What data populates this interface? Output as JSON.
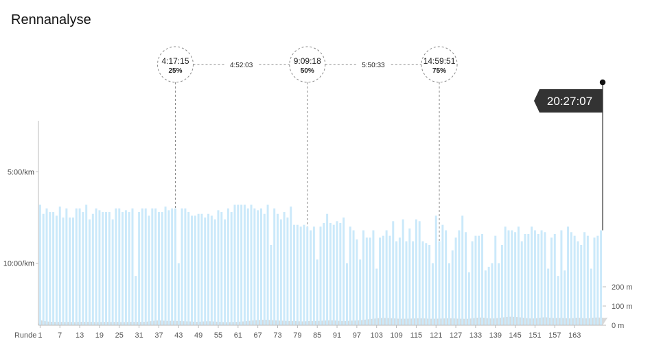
{
  "title": "Rennanalyse",
  "chart_data": {
    "type": "bar",
    "x_label_prefix": "Runde",
    "x_ticks": [
      "1",
      "7",
      "13",
      "19",
      "25",
      "31",
      "37",
      "43",
      "49",
      "55",
      "61",
      "67",
      "73",
      "79",
      "85",
      "91",
      "97",
      "103",
      "109",
      "115",
      "121",
      "127",
      "133",
      "139",
      "145",
      "151",
      "157",
      "163"
    ],
    "y_left_ticks": [
      "5:00/km",
      "10:00/km"
    ],
    "y_right_ticks": [
      "200 m",
      "100 m",
      "0 m"
    ],
    "lap_pace_min_per_km": [
      6.8,
      7.3,
      7.0,
      7.2,
      7.2,
      7.4,
      6.9,
      7.5,
      7.0,
      7.5,
      7.5,
      7.0,
      7.0,
      7.2,
      6.8,
      7.6,
      7.3,
      7.0,
      7.1,
      7.2,
      7.2,
      7.2,
      7.6,
      7.0,
      7.0,
      7.2,
      7.1,
      7.2,
      7.0,
      10.7,
      7.2,
      7.0,
      7.0,
      7.4,
      7.0,
      7.0,
      7.2,
      7.2,
      6.9,
      7.1,
      7.0,
      7.0,
      10.0,
      7.0,
      7.0,
      7.2,
      7.4,
      7.4,
      7.3,
      7.3,
      7.5,
      7.3,
      7.4,
      7.6,
      7.1,
      7.2,
      7.6,
      7.0,
      7.2,
      6.8,
      6.8,
      6.8,
      6.8,
      7.0,
      6.8,
      7.0,
      7.1,
      7.0,
      7.3,
      6.8,
      9.0,
      7.0,
      7.3,
      7.6,
      7.2,
      7.5,
      6.9,
      7.9,
      7.9,
      8.0,
      7.9,
      8.0,
      8.2,
      8.0,
      9.8,
      8.0,
      7.8,
      7.3,
      7.8,
      7.9,
      7.7,
      7.8,
      7.5,
      10.0,
      8.0,
      8.2,
      8.7,
      9.8,
      8.2,
      8.6,
      8.6,
      8.2,
      10.3,
      8.6,
      8.5,
      8.2,
      8.5,
      7.7,
      8.8,
      8.6,
      7.6,
      8.8,
      8.1,
      8.8,
      7.6,
      7.7,
      8.8,
      8.9,
      9.0,
      10.0,
      7.4,
      8.8,
      7.9,
      8.2,
      10.0,
      9.3,
      8.6,
      8.2,
      7.4,
      8.3,
      10.5,
      8.8,
      8.5,
      8.5,
      8.4,
      10.4,
      10.2,
      10.0,
      8.5,
      10.0,
      9.0,
      8.0,
      8.2,
      8.2,
      8.3,
      8.0,
      8.8,
      8.4,
      8.4,
      8.0,
      8.2,
      8.4,
      8.2,
      8.3,
      10.3,
      8.6,
      8.4,
      10.7,
      8.2,
      10.4,
      8.0,
      8.3,
      8.5,
      8.8,
      9.0,
      8.3,
      8.5,
      10.3,
      8.6,
      8.5,
      8.2
    ],
    "y_lim_pace": [
      2.2,
      13.4
    ],
    "elevation_m": [
      28,
      22,
      20,
      18,
      18,
      17,
      18,
      17,
      17,
      18,
      16,
      17,
      18,
      18,
      18,
      17,
      18,
      16,
      17,
      17,
      18,
      17,
      17,
      18,
      17,
      16,
      17,
      17,
      18,
      17,
      18,
      17,
      18,
      20,
      22,
      24,
      25,
      24,
      23,
      22,
      23,
      22,
      22,
      22,
      20,
      20,
      19,
      18,
      18,
      19,
      20,
      21,
      20,
      19,
      18,
      17,
      16,
      16,
      17,
      17,
      18,
      19,
      20,
      22,
      24,
      26,
      27,
      28,
      28,
      28,
      27,
      26,
      24,
      24,
      23,
      22,
      22,
      22,
      21,
      20,
      20,
      21,
      22,
      22,
      22,
      23,
      24,
      25,
      26,
      25,
      24,
      22,
      22,
      22,
      24,
      24,
      25,
      26,
      28,
      30,
      32,
      34,
      36,
      38,
      38,
      38,
      37,
      36,
      35,
      34,
      34,
      34,
      35,
      35,
      36,
      36,
      36,
      35,
      34,
      34,
      34,
      35,
      35,
      36,
      36,
      36,
      35,
      34,
      34,
      33,
      34,
      36,
      38,
      40,
      40,
      38,
      36,
      35,
      36,
      38,
      40,
      42,
      44,
      44,
      43,
      42,
      40,
      38,
      36,
      35,
      36,
      38,
      40,
      42,
      40,
      38,
      38,
      38,
      38,
      38,
      36,
      36,
      38,
      40,
      38,
      36,
      36,
      38,
      40,
      40,
      40,
      38,
      40
    ],
    "y_lim_elev": [
      0,
      240
    ],
    "splits": [
      {
        "time": "4:17:15",
        "pct": "25%",
        "lap": 42
      },
      {
        "time": "9:09:18",
        "pct": "50%",
        "lap": 82
      },
      {
        "time": "14:59:51",
        "pct": "75%",
        "lap": 122
      }
    ],
    "split_diffs": [
      "4:52:03",
      "5:50:33"
    ],
    "finish_time": "20:27:07",
    "colors": {
      "bar": "#cbe9fa",
      "elevation": "#d9d9d9",
      "axis": "#bbbbbb",
      "flag": "#333333"
    }
  }
}
